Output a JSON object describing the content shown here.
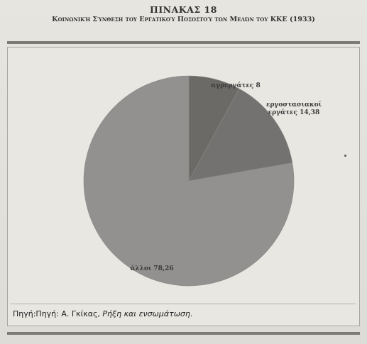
{
  "document": {
    "table_label": "ΠΙΝΑΚΑΣ 18",
    "subtitle": "Κοινωνική Σύνθεση του Εργατικού Ποσοστού των Μελών του ΚΚΕ (1933)",
    "source_prefix": "Πηγή:Πηγή: Α. Γκίκας, ",
    "source_title": "Ρήξη και ενσωμάτωση",
    "source_suffix": "."
  },
  "chart_data": {
    "type": "pie",
    "title": "",
    "slices": [
      {
        "category": "αγρεργάτες",
        "value": 8,
        "label": "αγρεργάτες 8",
        "color": "#6c6a67"
      },
      {
        "category": "εργοστασιακοί εργάτες",
        "value": 14.38,
        "label_lines": [
          "εργοστασιακοί",
          "εργάτες 14,38"
        ],
        "color": "#747270"
      },
      {
        "category": "άλλοι",
        "value": 78.26,
        "label": "άλλοι 78,26",
        "color": "#939190"
      }
    ],
    "legend": "none"
  },
  "colors": {
    "background": "#e3e1dc",
    "rule": "#7d7b77"
  }
}
